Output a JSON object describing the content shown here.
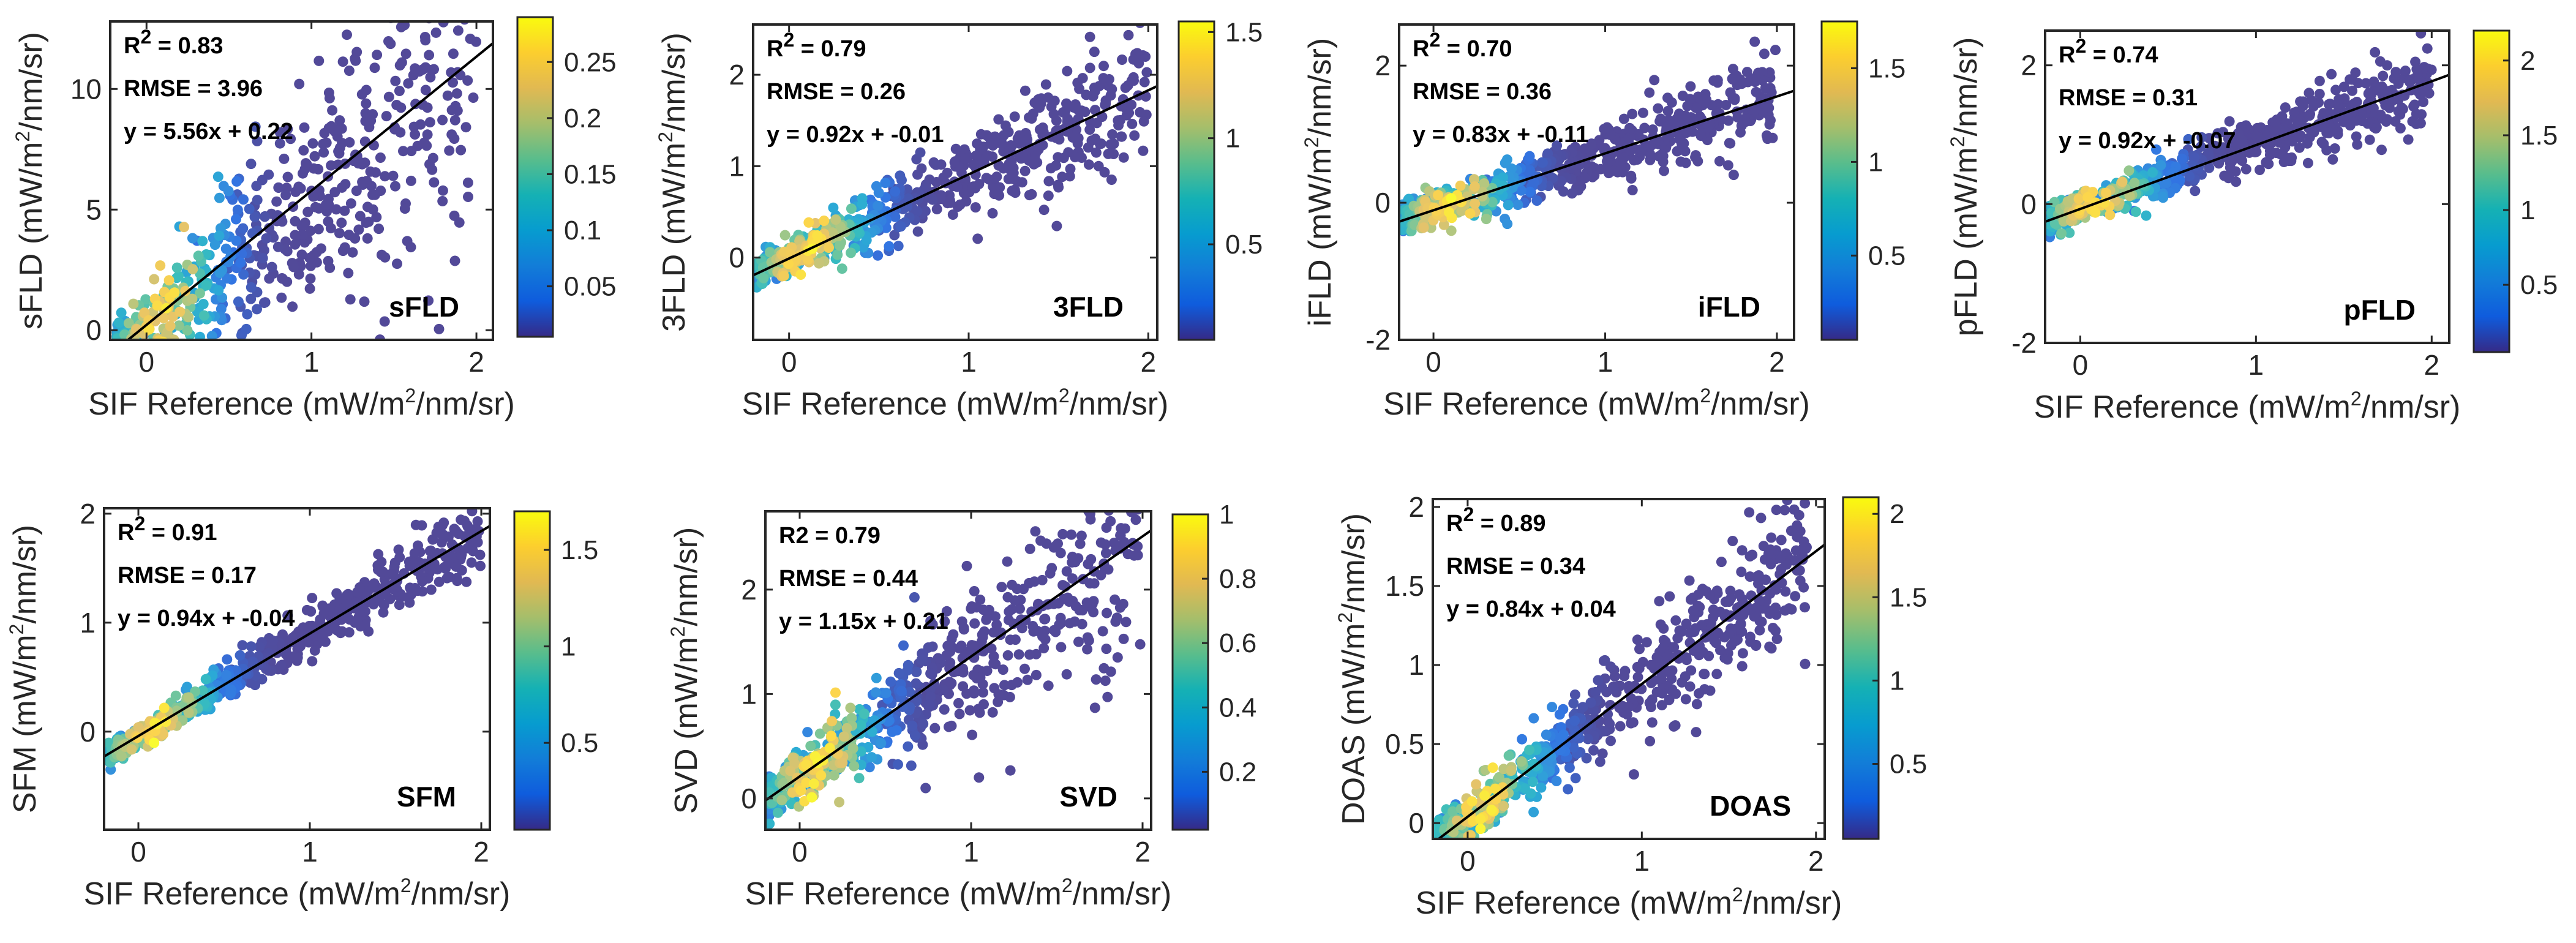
{
  "figure": {
    "x_label": {
      "prefix": "SIF Reference (mW/m",
      "sup": "2",
      "suffix": "/nm/sr)"
    },
    "y_label_parts": {
      "prefix": " (mW/m",
      "sup": "2",
      "suffix": "/nm/sr)"
    }
  },
  "chart_data": [
    {
      "type": "scatter",
      "method": "sFLD",
      "ylabel_prefix": "sFLD",
      "r2_label": "R",
      "r2_sup": "2",
      "r2_value": " = 0.83",
      "rmse": "RMSE = 3.96",
      "equation": "y = 5.56x + 0.22",
      "slope": 5.56,
      "intercept": 0.22,
      "xlim": [
        -0.22,
        2.1
      ],
      "ylim": [
        -0.4,
        12.8
      ],
      "xticks": [
        0,
        1,
        2
      ],
      "yticks": [
        0,
        5,
        10
      ],
      "cbar_range": [
        0.005,
        0.29
      ],
      "cbar_ticks": [
        0.05,
        0.1,
        0.15,
        0.2,
        0.25
      ],
      "cbar_labels": [
        "0.05",
        "0.1",
        "0.15",
        "0.2",
        "0.25"
      ],
      "points": {
        "count": 620,
        "noise": 1.8,
        "noise_growth": 1.0,
        "x_max": 2.0
      }
    },
    {
      "type": "scatter",
      "method": "3FLD",
      "ylabel_prefix": "3FLD",
      "r2_label": "R",
      "r2_sup": "2",
      "r2_value": " = 0.79",
      "rmse": "RMSE = 0.26",
      "equation": "y = 0.92x + -0.01",
      "slope": 0.92,
      "intercept": -0.01,
      "xlim": [
        -0.2,
        2.05
      ],
      "ylim": [
        -0.9,
        2.55
      ],
      "xticks": [
        0,
        1,
        2
      ],
      "yticks": [
        0,
        1,
        2
      ],
      "cbar_range": [
        0.05,
        1.55
      ],
      "cbar_ticks": [
        0.5,
        1,
        1.5
      ],
      "cbar_labels": [
        "0.5",
        "1",
        "1.5"
      ],
      "points": {
        "count": 650,
        "noise": 0.28,
        "noise_growth": 0.5,
        "x_max": 2.0
      }
    },
    {
      "type": "scatter",
      "method": "iFLD",
      "ylabel_prefix": "iFLD",
      "r2_label": "R",
      "r2_sup": "2",
      "r2_value": " = 0.70",
      "rmse": "RMSE = 0.36",
      "equation": "y = 0.83x + -0.11",
      "slope": 0.83,
      "intercept": -0.11,
      "xlim": [
        -0.2,
        2.1
      ],
      "ylim": [
        -2.0,
        2.6
      ],
      "xticks": [
        0,
        1,
        2
      ],
      "yticks": [
        -2,
        0,
        2
      ],
      "cbar_range": [
        0.05,
        1.75
      ],
      "cbar_ticks": [
        0.5,
        1,
        1.5
      ],
      "cbar_labels": [
        "0.5",
        "1",
        "1.5"
      ],
      "points": {
        "count": 650,
        "noise": 0.35,
        "noise_growth": 0.3,
        "x_max": 2.0
      }
    },
    {
      "type": "scatter",
      "method": "pFLD",
      "ylabel_prefix": "pFLD",
      "r2_label": "R",
      "r2_sup": "2",
      "r2_value": " = 0.74",
      "rmse": "RMSE = 0.31",
      "equation": "y = 0.92x + -0.07",
      "slope": 0.92,
      "intercept": -0.07,
      "xlim": [
        -0.2,
        2.1
      ],
      "ylim": [
        -2.0,
        2.5
      ],
      "xticks": [
        0,
        1,
        2
      ],
      "yticks": [
        -2,
        0,
        2
      ],
      "cbar_range": [
        0.05,
        2.2
      ],
      "cbar_ticks": [
        0.5,
        1,
        1.5,
        2
      ],
      "cbar_labels": [
        "0.5",
        "1",
        "1.5",
        "2"
      ],
      "points": {
        "count": 650,
        "noise": 0.3,
        "noise_growth": 0.3,
        "x_max": 2.0
      }
    },
    {
      "type": "scatter",
      "method": "SFM",
      "ylabel_prefix": "SFM",
      "r2_label": "R",
      "r2_sup": "2",
      "r2_value": " = 0.91",
      "rmse": "RMSE = 0.17",
      "equation": "y = 0.94x + -0.04",
      "slope": 0.94,
      "intercept": -0.04,
      "xlim": [
        -0.2,
        2.05
      ],
      "ylim": [
        -0.9,
        2.05
      ],
      "xticks": [
        0,
        1,
        2
      ],
      "yticks": [
        0,
        1,
        2
      ],
      "cbar_range": [
        0.05,
        1.7
      ],
      "cbar_ticks": [
        0.5,
        1,
        1.5
      ],
      "cbar_labels": [
        "0.5",
        "1",
        "1.5"
      ],
      "points": {
        "count": 650,
        "noise": 0.16,
        "noise_growth": 0.4,
        "x_max": 2.0
      }
    },
    {
      "type": "scatter",
      "method": "SVD",
      "ylabel_prefix": "SVD",
      "r2_label": "R2",
      "r2_sup": "",
      "r2_value": " = 0.79",
      "rmse": "RMSE = 0.44",
      "equation": "y = 1.15x + 0.21",
      "slope": 1.15,
      "intercept": 0.21,
      "xlim": [
        -0.2,
        2.05
      ],
      "ylim": [
        -0.3,
        2.75
      ],
      "xticks": [
        0,
        1,
        2
      ],
      "yticks": [
        0,
        1,
        2
      ],
      "cbar_range": [
        0.02,
        1.0
      ],
      "cbar_ticks": [
        0.2,
        0.4,
        0.6,
        0.8,
        1
      ],
      "cbar_labels": [
        "0.2",
        "0.4",
        "0.6",
        "0.8",
        "1"
      ],
      "points": {
        "count": 650,
        "noise": 0.35,
        "noise_growth": 0.6,
        "x_max": 2.0
      }
    },
    {
      "type": "scatter",
      "method": "DOAS",
      "ylabel_prefix": "DOAS",
      "r2_label": "R",
      "r2_sup": "2",
      "r2_value": " = 0.89",
      "rmse": "RMSE = 0.34",
      "equation": "y = 0.84x + 0.04",
      "slope": 0.84,
      "intercept": 0.04,
      "xlim": [
        -0.2,
        2.05
      ],
      "ylim": [
        -0.1,
        2.05
      ],
      "xticks": [
        0,
        1,
        2
      ],
      "yticks": [
        0,
        0.5,
        1,
        1.5,
        2
      ],
      "cbar_range": [
        0.05,
        2.1
      ],
      "cbar_ticks": [
        0.5,
        1,
        1.5,
        2
      ],
      "cbar_labels": [
        "0.5",
        "1",
        "1.5",
        "2"
      ],
      "points": {
        "count": 650,
        "noise": 0.2,
        "noise_growth": 0.5,
        "x_max": 1.95
      }
    }
  ]
}
